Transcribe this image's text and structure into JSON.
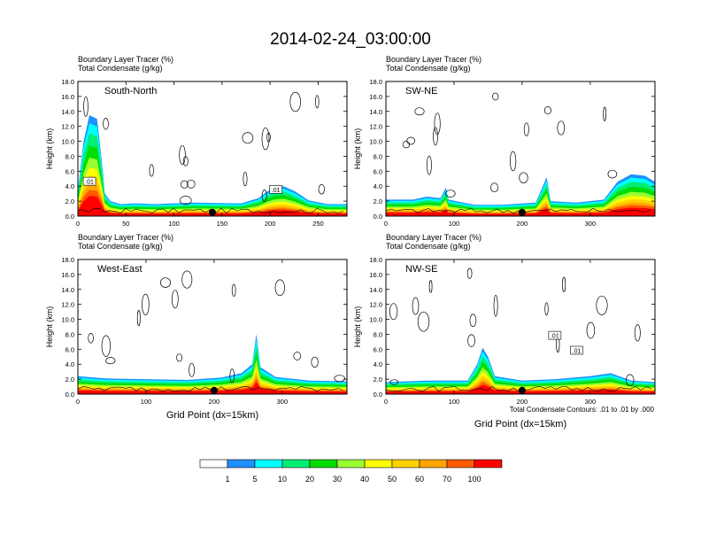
{
  "figure": {
    "title": "2014-02-24_03:00:00",
    "x_title": "Grid Point (dx=15km)",
    "contour_note": "Total Condensate Contours: .01 to .01 by .000"
  },
  "colorbar": {
    "labels": [
      "1",
      "5",
      "10",
      "20",
      "30",
      "40",
      "50",
      "60",
      "70",
      "100"
    ],
    "colors": [
      "#ffffff",
      "#1e90ff",
      "#00ffff",
      "#00ee76",
      "#00dd00",
      "#9aff32",
      "#ffff00",
      "#ffd000",
      "#ffa500",
      "#ff5a00",
      "#ff0000"
    ]
  },
  "chart_data": [
    {
      "type": "heatmap",
      "panel": "South-North",
      "subtitle_line1": "Boundary Layer Tracer   (%)",
      "subtitle_line2": "Total Condensate   (g/kg)",
      "xlim": [
        0,
        280
      ],
      "ylim": [
        0,
        18
      ],
      "ylabel": "Height (km)",
      "xticks": [
        "0",
        "50",
        "100",
        "150",
        "200",
        "250"
      ],
      "xtick_values": [
        0,
        50,
        100,
        150,
        200,
        250
      ],
      "yticks": [
        "0.0",
        "2.0",
        "4.0",
        "6.0",
        "8.0",
        "10.0",
        "12.0",
        "14.0",
        "16.0",
        "18.0"
      ],
      "marker_x": 140,
      "contour_labels": [
        {
          "text": ".01",
          "x": 12,
          "y": 4.6
        },
        {
          "text": ".01",
          "x": 206,
          "y": 3.5
        }
      ],
      "tracer_profile": [
        [
          0,
          3.5
        ],
        [
          6,
          10
        ],
        [
          12,
          13.5
        ],
        [
          20,
          13
        ],
        [
          26,
          6
        ],
        [
          28,
          3
        ],
        [
          34,
          2
        ],
        [
          44,
          1.6
        ],
        [
          60,
          1.7
        ],
        [
          80,
          1.6
        ],
        [
          120,
          1.8
        ],
        [
          170,
          1.7
        ],
        [
          188,
          2.4
        ],
        [
          196,
          3.2
        ],
        [
          204,
          3.8
        ],
        [
          214,
          4
        ],
        [
          226,
          3.3
        ],
        [
          240,
          2.1
        ],
        [
          260,
          1.6
        ],
        [
          280,
          1.6
        ]
      ]
    },
    {
      "type": "heatmap",
      "panel": "SW-NE",
      "subtitle_line1": "Boundary Layer Tracer   (%)",
      "subtitle_line2": "Total Condensate   (g/kg)",
      "xlim": [
        0,
        395
      ],
      "ylim": [
        0,
        18
      ],
      "ylabel": "Height (km)",
      "xticks": [
        "0",
        "100",
        "200",
        "300"
      ],
      "xtick_values": [
        0,
        100,
        200,
        300
      ],
      "yticks": [
        "0.0",
        "2.0",
        "4.0",
        "6.0",
        "8.0",
        "10.0",
        "12.0",
        "14.0",
        "16.0",
        "18.0"
      ],
      "marker_x": 200,
      "contour_labels": [],
      "tracer_profile": [
        [
          0,
          2.2
        ],
        [
          40,
          2.2
        ],
        [
          60,
          2.6
        ],
        [
          80,
          2.4
        ],
        [
          88,
          3.8
        ],
        [
          92,
          2.2
        ],
        [
          130,
          1.5
        ],
        [
          170,
          1.5
        ],
        [
          220,
          1.8
        ],
        [
          236,
          5.2
        ],
        [
          242,
          2
        ],
        [
          280,
          1.8
        ],
        [
          320,
          2.2
        ],
        [
          340,
          4.6
        ],
        [
          360,
          5.6
        ],
        [
          380,
          5.4
        ],
        [
          395,
          4.6
        ]
      ]
    },
    {
      "type": "heatmap",
      "panel": "West-East",
      "subtitle_line1": "Boundary Layer Tracer   (%)",
      "subtitle_line2": "Total Condensate   (g/kg)",
      "xlim": [
        0,
        395
      ],
      "ylim": [
        0,
        18
      ],
      "ylabel": "Height (km)",
      "xticks": [
        "0",
        "100",
        "200",
        "300"
      ],
      "xtick_values": [
        0,
        100,
        200,
        300
      ],
      "yticks": [
        "0.0",
        "2.0",
        "4.0",
        "6.0",
        "8.0",
        "10.0",
        "12.0",
        "14.0",
        "16.0",
        "18.0"
      ],
      "marker_x": 200,
      "contour_labels": [],
      "tracer_profile": [
        [
          0,
          2.4
        ],
        [
          40,
          2.1
        ],
        [
          100,
          2
        ],
        [
          160,
          1.9
        ],
        [
          210,
          2.2
        ],
        [
          240,
          2.8
        ],
        [
          256,
          4
        ],
        [
          262,
          8
        ],
        [
          268,
          3.6
        ],
        [
          290,
          2.3
        ],
        [
          340,
          1.8
        ],
        [
          395,
          1.7
        ]
      ]
    },
    {
      "type": "heatmap",
      "panel": "NW-SE",
      "subtitle_line1": "Boundary Layer Tracer   (%)",
      "subtitle_line2": "Total Condensate   (g/kg)",
      "xlim": [
        0,
        395
      ],
      "ylim": [
        0,
        18
      ],
      "ylabel": "Height (km)",
      "xticks": [
        "0",
        "100",
        "200",
        "300"
      ],
      "xtick_values": [
        0,
        100,
        200,
        300
      ],
      "yticks": [
        "0.0",
        "2.0",
        "4.0",
        "6.0",
        "8.0",
        "10.0",
        "12.0",
        "14.0",
        "16.0",
        "18.0"
      ],
      "marker_x": 200,
      "contour_labels": [
        {
          "text": ".01",
          "x": 248,
          "y": 7.8
        },
        {
          "text": ".01",
          "x": 280,
          "y": 5.8
        }
      ],
      "tracer_profile": [
        [
          0,
          1.6
        ],
        [
          60,
          1.8
        ],
        [
          120,
          1.8
        ],
        [
          134,
          4
        ],
        [
          142,
          6.2
        ],
        [
          150,
          5
        ],
        [
          160,
          2.4
        ],
        [
          200,
          1.8
        ],
        [
          250,
          2
        ],
        [
          300,
          2.4
        ],
        [
          330,
          2.8
        ],
        [
          360,
          1.8
        ],
        [
          395,
          1.6
        ]
      ]
    }
  ]
}
